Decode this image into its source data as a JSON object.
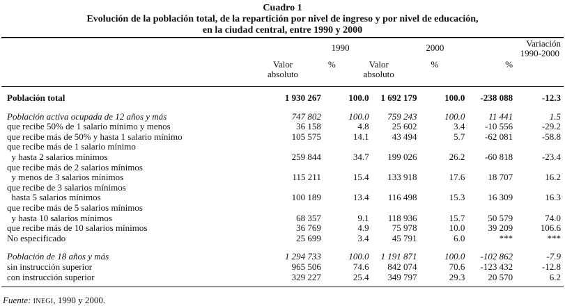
{
  "title": {
    "line1": "Cuadro 1",
    "line2": "Evolución de la población total, de la repartición por nivel de ingreso y por nivel de educación,",
    "line3": "en la ciudad central, entre 1990 y 2000"
  },
  "header": {
    "year1": "1990",
    "year2": "2000",
    "variation_line1": "Variación",
    "variation_line2": "1990-2000",
    "valor1": "Valor",
    "absoluto": "absoluto",
    "percent": "%"
  },
  "rows": [
    {
      "label": "Población total",
      "v1": "1 930 267",
      "p1": "100.0",
      "v2": "1 692 179",
      "p2": "100.0",
      "v3": "-238 088",
      "p3": "-12.3",
      "style": "bold"
    },
    {
      "label": "Población activa ocupada de 12 años y más",
      "v1": "747 802",
      "p1": "100.0",
      "v2": "759 243",
      "p2": "100.0",
      "v3": "11 441",
      "p3": "1.5",
      "style": "it"
    },
    {
      "label": "que recibe 50% de 1 salario mínimo y menos",
      "v1": "36 158",
      "p1": "4.8",
      "v2": "25 602",
      "p2": "3.4",
      "v3": "-10 556",
      "p3": "-29.2"
    },
    {
      "label": "que recibe más de 50% y hasta 1 salario mínimo",
      "v1": "105 575",
      "p1": "14.1",
      "v2": "43 494",
      "p2": "5.7",
      "v3": "-62 081",
      "p3": "-58.8"
    },
    {
      "label": "que recibe más de 1 salario mínimo"
    },
    {
      "label": "  y hasta 2 salarios mínimos",
      "v1": "259 844",
      "p1": "34.7",
      "v2": "199 026",
      "p2": "26.2",
      "v3": "-60 818",
      "p3": "-23.4"
    },
    {
      "label": "que recibe más de 2 salarios mínimos"
    },
    {
      "label": "  y menos de 3 salarios mínimos",
      "v1": "115 211",
      "p1": "15.4",
      "v2": "133 918",
      "p2": "17.6",
      "v3": "18 707",
      "p3": "16.2"
    },
    {
      "label": "que recibe de 3 salarios mínimos"
    },
    {
      "label": "  hasta 5 salarios mínimos",
      "v1": "100 189",
      "p1": "13.4",
      "v2": "116 498",
      "p2": "15.3",
      "v3": "16 309",
      "p3": "16.3"
    },
    {
      "label": "que recibe más de 5 salarios mínimos"
    },
    {
      "label": "  y hasta 10 salarios mínimos",
      "v1": "68 357",
      "p1": "9.1",
      "v2": "118 936",
      "p2": "15.7",
      "v3": "50 579",
      "p3": "74.0"
    },
    {
      "label": "que recibe más de 10 salarios mínimos",
      "v1": "36 769",
      "p1": "4.9",
      "v2": "75 978",
      "p2": "10.0",
      "v3": "39 209",
      "p3": "106.6"
    },
    {
      "label": "No especificado",
      "v1": "25 699",
      "p1": "3.4",
      "v2": "45 791",
      "p2": "6.0",
      "v3": "***",
      "p3": "***"
    },
    {
      "label": "Población de 18 años y más",
      "v1": "1 294 733",
      "p1": "100.0",
      "v2": "1 191 871",
      "p2": "100.0",
      "v3": "-102 862",
      "p3": "-7.9",
      "style": "it"
    },
    {
      "label": "sin instrucción superior",
      "v1": "965 506",
      "p1": "74.6",
      "v2": "842 074",
      "p2": "70.6",
      "v3": "-123 432",
      "p3": "-12.8"
    },
    {
      "label": "con instrucción superior",
      "v1": "329 227",
      "p1": "25.4",
      "v2": "349 797",
      "p2": "29.3",
      "v3": "20 570",
      "p3": "6.2"
    }
  ],
  "footer": {
    "fuente_label": "Fuente:",
    "source_org": "INEGI",
    "source_rest": ", 1990 y 2000."
  }
}
